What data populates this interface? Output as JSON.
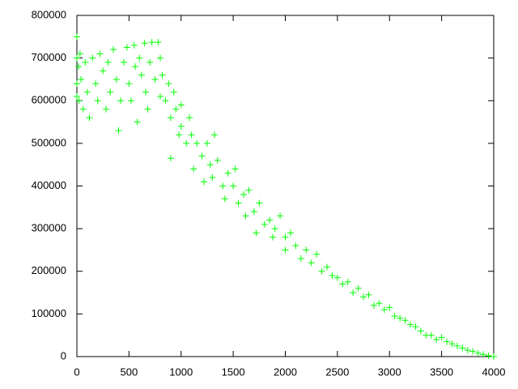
{
  "chart_data": {
    "type": "scatter",
    "x": [
      0,
      0,
      0,
      0,
      15,
      20,
      30,
      40,
      60,
      80,
      100,
      120,
      150,
      180,
      200,
      220,
      250,
      280,
      300,
      320,
      350,
      380,
      400,
      420,
      450,
      480,
      500,
      520,
      550,
      560,
      580,
      600,
      620,
      650,
      660,
      680,
      700,
      720,
      750,
      780,
      800,
      800,
      820,
      850,
      880,
      900,
      900,
      930,
      950,
      980,
      1000,
      1000,
      1050,
      1080,
      1100,
      1120,
      1150,
      1200,
      1220,
      1250,
      1280,
      1300,
      1320,
      1350,
      1400,
      1420,
      1450,
      1500,
      1520,
      1550,
      1600,
      1620,
      1650,
      1700,
      1720,
      1750,
      1800,
      1850,
      1880,
      1900,
      1950,
      2000,
      2000,
      2050,
      2100,
      2150,
      2200,
      2250,
      2300,
      2350,
      2400,
      2450,
      2500,
      2550,
      2600,
      2650,
      2700,
      2750,
      2800,
      2850,
      2900,
      2950,
      3000,
      3050,
      3100,
      3150,
      3200,
      3250,
      3300,
      3350,
      3400,
      3450,
      3500,
      3550,
      3600,
      3650,
      3700,
      3750,
      3800,
      3850,
      3900,
      3950,
      4000
    ],
    "values": [
      750000,
      700000,
      640000,
      610000,
      680000,
      600000,
      710000,
      650000,
      580000,
      690000,
      620000,
      560000,
      700000,
      640000,
      600000,
      710000,
      670000,
      580000,
      690000,
      620000,
      720000,
      650000,
      530000,
      600000,
      690000,
      725000,
      640000,
      600000,
      730000,
      680000,
      550000,
      700000,
      660000,
      735000,
      620000,
      580000,
      690000,
      737000,
      650000,
      737000,
      700000,
      610000,
      660000,
      600000,
      640000,
      560000,
      465000,
      620000,
      580000,
      520000,
      590000,
      540000,
      500000,
      560000,
      520000,
      440000,
      500000,
      470000,
      410000,
      500000,
      450000,
      420000,
      520000,
      460000,
      400000,
      370000,
      430000,
      400000,
      440000,
      360000,
      380000,
      330000,
      390000,
      340000,
      290000,
      360000,
      310000,
      320000,
      280000,
      300000,
      330000,
      280000,
      250000,
      290000,
      260000,
      230000,
      250000,
      220000,
      240000,
      200000,
      210000,
      190000,
      185000,
      170000,
      175000,
      150000,
      160000,
      140000,
      145000,
      120000,
      125000,
      110000,
      115000,
      95000,
      90000,
      85000,
      75000,
      70000,
      60000,
      50000,
      50000,
      40000,
      45000,
      35000,
      30000,
      25000,
      20000,
      15000,
      12000,
      8000,
      5000,
      2000,
      0
    ],
    "color": "#00ff00",
    "xlim": [
      0,
      4000
    ],
    "xticks": [
      0,
      500,
      1000,
      1500,
      2000,
      2500,
      3000,
      3500,
      4000
    ],
    "ylim": [
      0,
      800000
    ],
    "yticks": [
      0,
      100000,
      200000,
      300000,
      400000,
      500000,
      600000,
      700000,
      800000
    ]
  }
}
